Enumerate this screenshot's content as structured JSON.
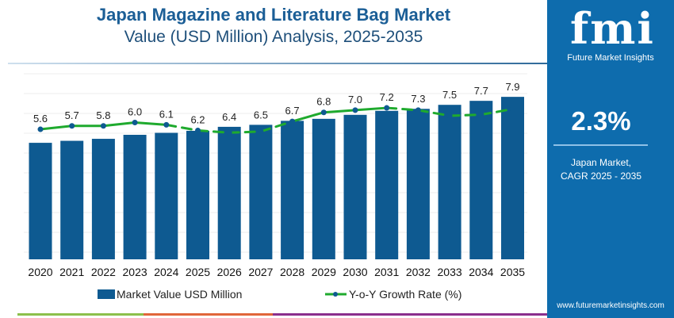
{
  "header": {
    "title": "Japan Magazine and Literature Bag Market",
    "subtitle": "Value (USD Million) Analysis, 2025-2035"
  },
  "sidebar": {
    "logo_text": "fmi",
    "brand": "Future Market Insights",
    "cagr_value": "2.3%",
    "cagr_label_1": "Japan Market,",
    "cagr_label_2": "CAGR 2025 - 2035",
    "url": "www.futuremarketinsights.com"
  },
  "colors": {
    "bar": "#0e5a91",
    "line": "#1faa2e",
    "dot": "#0e5a91",
    "panel": "#0e6cad",
    "stripes": [
      "#8cc04b",
      "#e0663a",
      "#8b2f8d"
    ]
  },
  "chart_data": {
    "type": "bar+line",
    "categories": [
      "2020",
      "2021",
      "2022",
      "2023",
      "2024",
      "2025",
      "2026",
      "2027",
      "2028",
      "2029",
      "2030",
      "2031",
      "2032",
      "2033",
      "2034",
      "2035"
    ],
    "series": [
      {
        "name": "Market Value USD Million",
        "type": "bar",
        "values": [
          5.6,
          5.7,
          5.8,
          6.0,
          6.1,
          6.2,
          6.4,
          6.5,
          6.7,
          6.8,
          7.0,
          7.2,
          7.3,
          7.5,
          7.7,
          7.9
        ],
        "labels": [
          "5.6",
          "5.7",
          "5.8",
          "6.0",
          "6.1",
          "6.2",
          "6.4",
          "6.5",
          "6.7",
          "6.8",
          "7.0",
          "7.2",
          "7.3",
          "7.5",
          "7.7",
          "7.9"
        ]
      },
      {
        "name": "Y-o-Y Growth Rate (%)",
        "type": "line",
        "values": [
          1.8,
          2.1,
          2.1,
          2.4,
          2.2,
          1.7,
          1.5,
          1.6,
          2.5,
          3.3,
          3.5,
          3.7,
          3.5,
          3.0,
          3.1,
          3.6
        ],
        "dashed_segments": [
          4,
          5,
          6,
          7,
          11,
          12,
          13,
          14
        ]
      }
    ],
    "ylim": [
      0,
      9
    ],
    "grid": true,
    "legend": "bottom"
  }
}
